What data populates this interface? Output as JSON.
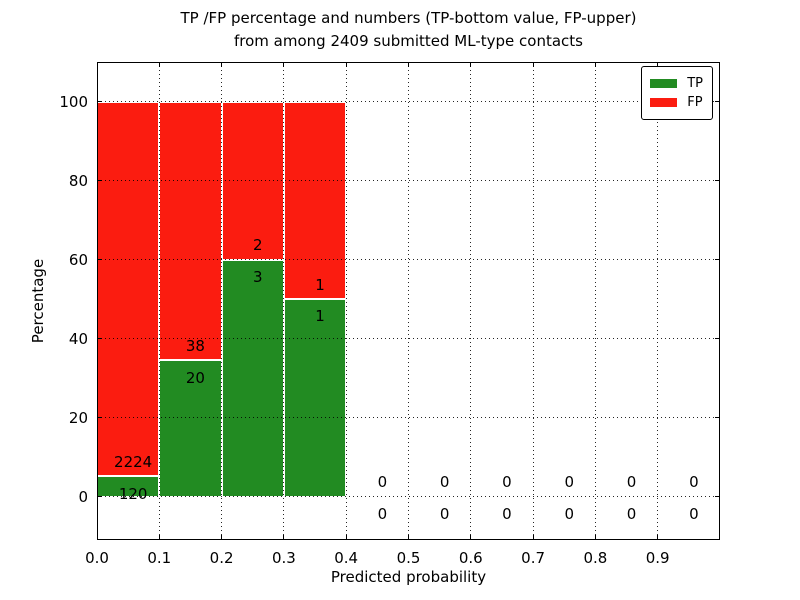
{
  "chart_data": {
    "type": "bar",
    "stacked": true,
    "title_lines": [
      "TP /FP percentage and numbers (TP-bottom value, FP-upper)",
      "from among 2409 submitted ML-type contacts"
    ],
    "xlabel": "Predicted probability",
    "ylabel": "Percentage",
    "xlim": [
      0.0,
      1.0
    ],
    "ylim": [
      -11,
      110
    ],
    "xtick_values": [
      0.0,
      0.1,
      0.2,
      0.3,
      0.4,
      0.5,
      0.6,
      0.7,
      0.8,
      0.9
    ],
    "xtick_labels": [
      "0.0",
      "0.1",
      "0.2",
      "0.3",
      "0.4",
      "0.5",
      "0.6",
      "0.7",
      "0.8",
      "0.9"
    ],
    "ytick_values": [
      0,
      20,
      40,
      60,
      80,
      100
    ],
    "ytick_labels": [
      "0",
      "20",
      "40",
      "60",
      "80",
      "100"
    ],
    "grid": true,
    "grid_style": "dotted",
    "legend_position": "upper right",
    "series": [
      {
        "name": "TP",
        "color": "#228b22"
      },
      {
        "name": "FP",
        "color": "#fb1c10"
      }
    ],
    "bins": [
      {
        "x0": 0.0,
        "x1": 0.1,
        "tp": 120,
        "fp": 2224
      },
      {
        "x0": 0.1,
        "x1": 0.2,
        "tp": 20,
        "fp": 38
      },
      {
        "x0": 0.2,
        "x1": 0.3,
        "tp": 3,
        "fp": 2
      },
      {
        "x0": 0.3,
        "x1": 0.4,
        "tp": 1,
        "fp": 1
      },
      {
        "x0": 0.4,
        "x1": 0.5,
        "tp": 0,
        "fp": 0
      },
      {
        "x0": 0.5,
        "x1": 0.6,
        "tp": 0,
        "fp": 0
      },
      {
        "x0": 0.6,
        "x1": 0.7,
        "tp": 0,
        "fp": 0
      },
      {
        "x0": 0.7,
        "x1": 0.8,
        "tp": 0,
        "fp": 0
      },
      {
        "x0": 0.8,
        "x1": 0.9,
        "tp": 0,
        "fp": 0
      },
      {
        "x0": 0.9,
        "x1": 1.0,
        "tp": 0,
        "fp": 0
      }
    ]
  }
}
